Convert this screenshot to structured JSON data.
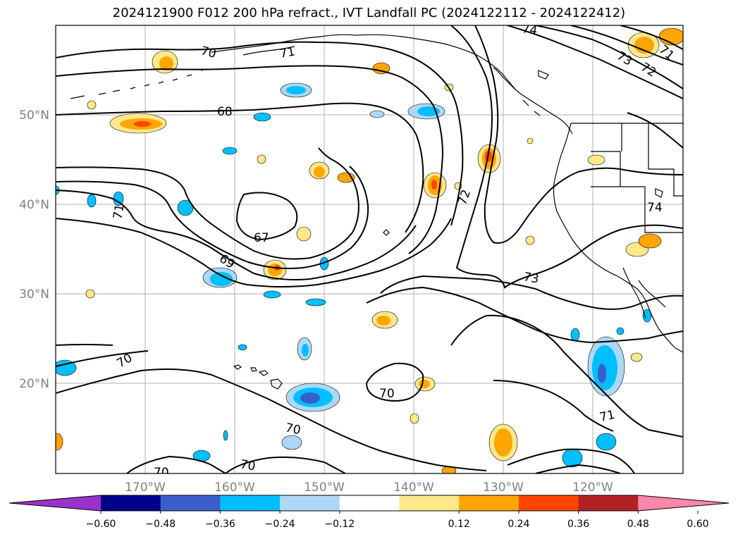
{
  "title": "2024121900 F012 200 hPa refract., IVT Landfall PC (2024122112 - 2024122412)",
  "map": {
    "lat_labels": [
      "50°N",
      "40°N",
      "30°N",
      "20°N"
    ],
    "lon_labels": [
      "170°W",
      "160°W",
      "150°W",
      "140°W",
      "130°W",
      "120°W"
    ],
    "contour_labels": [
      "70",
      "71",
      "68",
      "67",
      "69",
      "71",
      "70",
      "70",
      "70",
      "70",
      "72",
      "73",
      "74",
      "73",
      "72",
      "71",
      "74",
      "71",
      "70"
    ]
  },
  "colorbar": {
    "ticks": [
      "−0.60",
      "−0.48",
      "−0.36",
      "−0.24",
      "−0.12",
      "0.12",
      "0.24",
      "0.36",
      "0.48",
      "0.60"
    ],
    "colors": [
      "#9932cc",
      "#00008b",
      "#3a5fcd",
      "#00bfff",
      "#add8f5",
      "#ffffff",
      "#ffe88a",
      "#ffa500",
      "#ff4500",
      "#b22222",
      "#ff88aa"
    ]
  },
  "colors": {
    "pos_light": "#ffe88a",
    "pos_mid": "#ffa500",
    "pos_strong": "#ff4500",
    "neg_light": "#add8f5",
    "neg_mid": "#00bfff",
    "neg_strong": "#3a5fcd"
  }
}
